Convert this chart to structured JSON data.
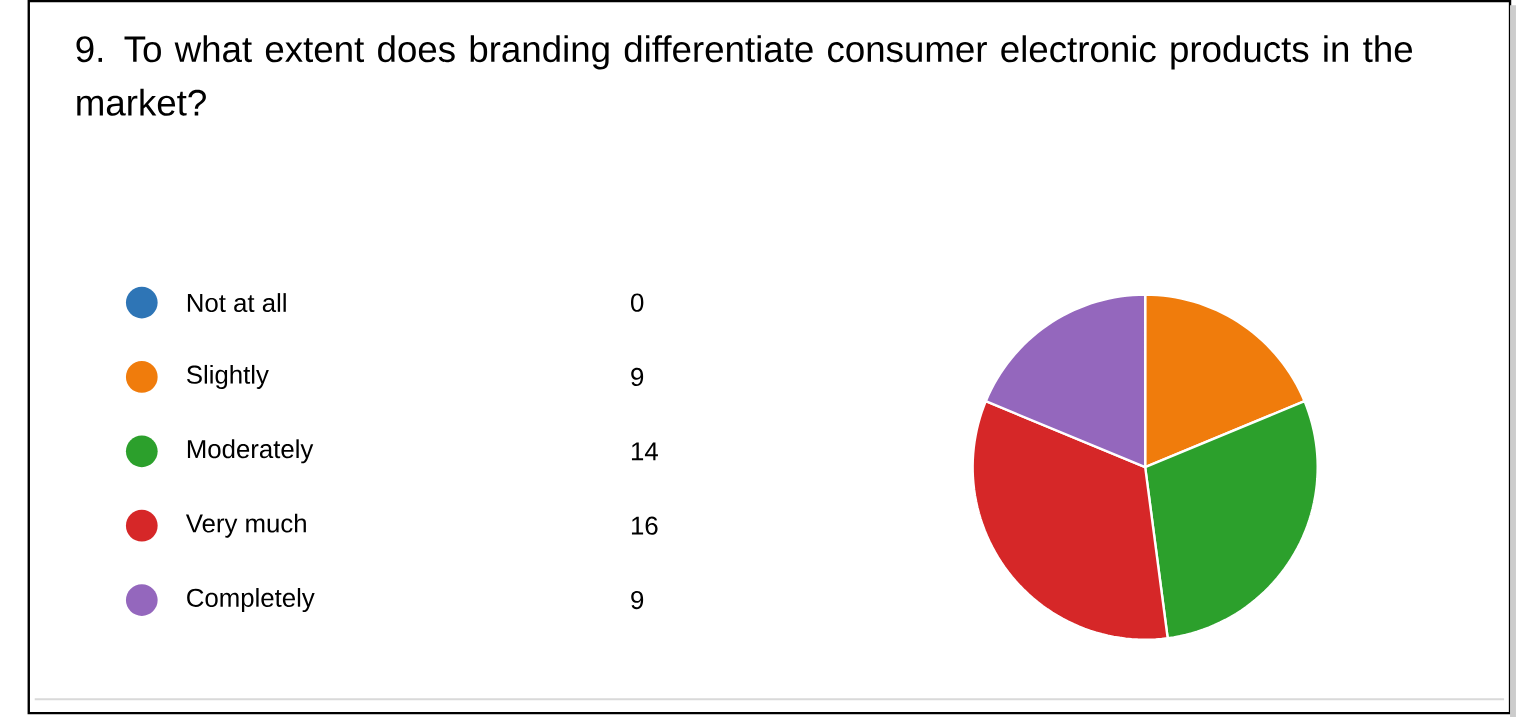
{
  "chart_data": {
    "type": "pie",
    "title": "9.  To what extent does branding differentiate consumer electronic products in the market?",
    "categories": [
      "Not at all",
      "Slightly",
      "Moderately",
      "Very much",
      "Completely"
    ],
    "values": [
      0,
      9,
      14,
      16,
      9
    ],
    "colors": [
      "#2e75b6",
      "#f07c0c",
      "#2ca02c",
      "#d62728",
      "#9467bd"
    ],
    "value_labels": [
      "0",
      "9",
      "14",
      "16",
      "9"
    ],
    "legend": "left"
  }
}
